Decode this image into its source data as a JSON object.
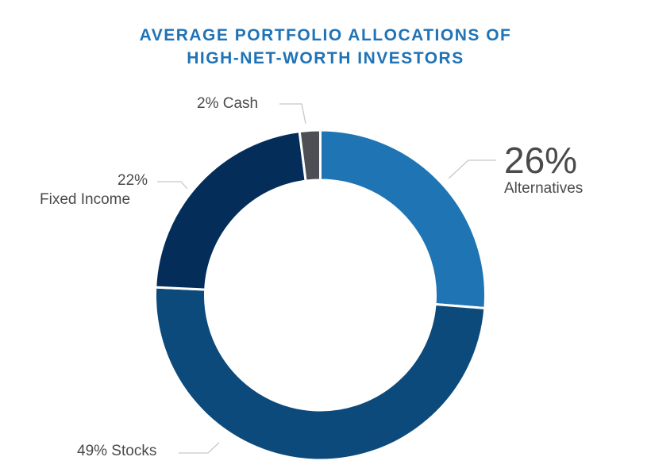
{
  "chart_data": {
    "type": "pie",
    "title": "AVERAGE PORTFOLIO ALLOCATIONS OF HIGH-NET-WORTH INVESTORS",
    "title_lines": [
      "AVERAGE PORTFOLIO ALLOCATIONS OF",
      "HIGH-NET-WORTH INVESTORS"
    ],
    "donut": true,
    "slices": [
      {
        "label": "Alternatives",
        "value": 26,
        "pct_text": "26%",
        "color": "#1f74b4"
      },
      {
        "label": "Stocks",
        "value": 49,
        "pct_text": "49% Stocks",
        "color": "#0d4a7c"
      },
      {
        "label": "Fixed Income",
        "value": 22,
        "pct_text": "22%",
        "color": "#052d5a"
      },
      {
        "label": "Cash",
        "value": 2,
        "pct_text": "2% Cash",
        "color": "#4d4f55"
      }
    ]
  }
}
